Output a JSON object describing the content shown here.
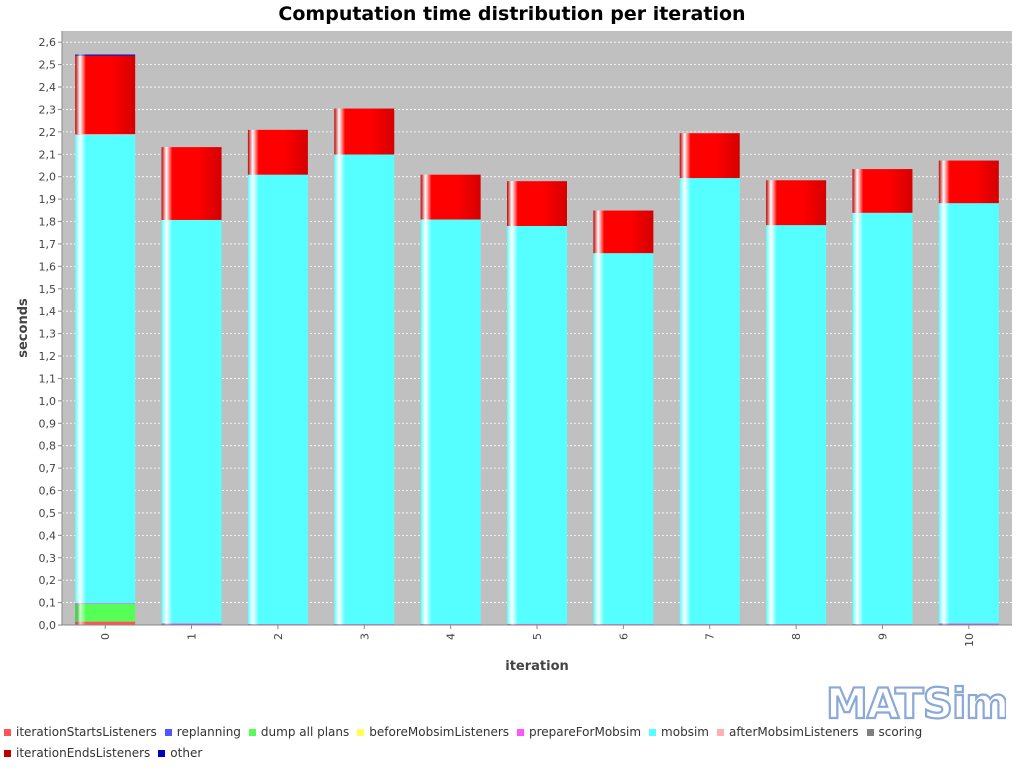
{
  "chart_data": {
    "type": "bar",
    "stacked": true,
    "title": "Computation time distribution per iteration",
    "xlabel": "iteration",
    "ylabel": "seconds",
    "ylim": [
      0,
      2.65
    ],
    "yticks": [
      "0,0",
      "0,1",
      "0,2",
      "0,3",
      "0,4",
      "0,5",
      "0,6",
      "0,7",
      "0,8",
      "0,9",
      "1,0",
      "1,1",
      "1,2",
      "1,3",
      "1,4",
      "1,5",
      "1,6",
      "1,7",
      "1,8",
      "1,9",
      "2,0",
      "2,1",
      "2,2",
      "2,3",
      "2,4",
      "2,5",
      "2,6"
    ],
    "grid": true,
    "legend_position": "bottom",
    "categories": [
      "0",
      "1",
      "2",
      "3",
      "4",
      "5",
      "6",
      "7",
      "8",
      "9",
      "10"
    ],
    "series": [
      {
        "name": "iterationStartsListeners",
        "color": "#ff5555",
        "values": [
          0.015,
          0,
          0,
          0,
          0,
          0,
          0,
          0,
          0,
          0,
          0
        ]
      },
      {
        "name": "replanning",
        "color": "#5555ff",
        "values": [
          0,
          0.005,
          0.003,
          0.003,
          0.003,
          0.004,
          0.003,
          0.003,
          0.003,
          0.003,
          0.005
        ]
      },
      {
        "name": "dump all plans",
        "color": "#55ff55",
        "values": [
          0.08,
          0,
          0,
          0,
          0,
          0,
          0,
          0,
          0,
          0,
          0
        ]
      },
      {
        "name": "beforeMobsimListeners",
        "color": "#ffff55",
        "values": [
          0,
          0,
          0,
          0,
          0,
          0,
          0,
          0,
          0,
          0,
          0
        ]
      },
      {
        "name": "prepareForMobsim",
        "color": "#ff55ff",
        "values": [
          0.002,
          0.002,
          0.001,
          0.001,
          0.001,
          0.001,
          0.001,
          0.001,
          0.001,
          0.001,
          0.002
        ]
      },
      {
        "name": "mobsim",
        "color": "#55ffff",
        "values": [
          2.09,
          1.8,
          2.005,
          2.095,
          1.805,
          1.775,
          1.655,
          1.99,
          1.78,
          1.835,
          1.875
        ]
      },
      {
        "name": "afterMobsimListeners",
        "color": "#ffafaf",
        "values": [
          0.003,
          0,
          0,
          0,
          0,
          0,
          0,
          0,
          0,
          0,
          0
        ]
      },
      {
        "name": "scoring",
        "color": "#808080",
        "values": [
          0,
          0,
          0,
          0,
          0,
          0,
          0,
          0,
          0,
          0,
          0
        ]
      },
      {
        "name": "iterationEndsListeners",
        "color": "#c00000",
        "values": [
          0.35,
          0.325,
          0.2,
          0.205,
          0.2,
          0.2,
          0.19,
          0.2,
          0.2,
          0.195,
          0.19
        ]
      },
      {
        "name": "other",
        "color": "#0000c0",
        "values": [
          0.005,
          0,
          0,
          0,
          0,
          0,
          0,
          0,
          0,
          0,
          0
        ]
      }
    ]
  },
  "logo": {
    "text": "MATSim"
  },
  "colors": {
    "plot_background": "#c0c0c0",
    "gridline": "#ffffff",
    "iterationEndsListeners_gradient_light": "#ff0000"
  }
}
